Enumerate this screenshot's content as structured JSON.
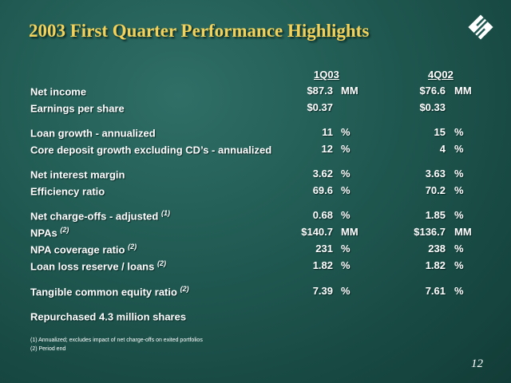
{
  "title": "2003 First Quarter Performance Highlights",
  "logo_icon": "huntington-logo-icon",
  "columns": [
    "1Q03",
    "4Q02"
  ],
  "rows": [
    {
      "label": "Net income",
      "note": "",
      "v1": "$87.3",
      "u1": "MM",
      "v2": "$76.6",
      "u2": "MM"
    },
    {
      "label": "Earnings per share",
      "note": "",
      "v1": "$0.37",
      "u1": "",
      "v2": "$0.33",
      "u2": ""
    },
    {
      "label": "Loan growth - annualized",
      "note": "",
      "v1": "11",
      "u1": "%",
      "v2": "15",
      "u2": "%"
    },
    {
      "label": "Core deposit growth excluding CD’s - annualized",
      "note": "",
      "v1": "12",
      "u1": "%",
      "v2": "4",
      "u2": "%"
    },
    {
      "label": "Net interest margin",
      "note": "",
      "v1": "3.62",
      "u1": "%",
      "v2": "3.63",
      "u2": "%"
    },
    {
      "label": "Efficiency ratio",
      "note": "",
      "v1": "69.6",
      "u1": "%",
      "v2": "70.2",
      "u2": "%"
    },
    {
      "label": "Net charge-offs - adjusted",
      "note": "(1)",
      "v1": "0.68",
      "u1": "%",
      "v2": "1.85",
      "u2": "%"
    },
    {
      "label": "NPAs",
      "note": "(2)",
      "v1": "$140.7",
      "u1": "MM",
      "v2": "$136.7",
      "u2": "MM"
    },
    {
      "label": "NPA coverage ratio",
      "note": "(2)",
      "v1": "231",
      "u1": "%",
      "v2": "238",
      "u2": "%"
    },
    {
      "label": "Loan loss reserve / loans",
      "note": "(2)",
      "v1": "1.82",
      "u1": "%",
      "v2": "1.82",
      "u2": "%"
    },
    {
      "label": "Tangible common equity ratio",
      "note": "(2)",
      "v1": "7.39",
      "u1": "%",
      "v2": "7.61",
      "u2": "%"
    },
    {
      "label": "Repurchased 4.3 million shares",
      "note": "",
      "v1": "",
      "u1": "",
      "v2": "",
      "u2": ""
    }
  ],
  "footnotes": [
    "(1)  Annualized; excludes impact of net charge-offs on exited portfolios",
    "(2)  Period end"
  ],
  "page_number": "12"
}
